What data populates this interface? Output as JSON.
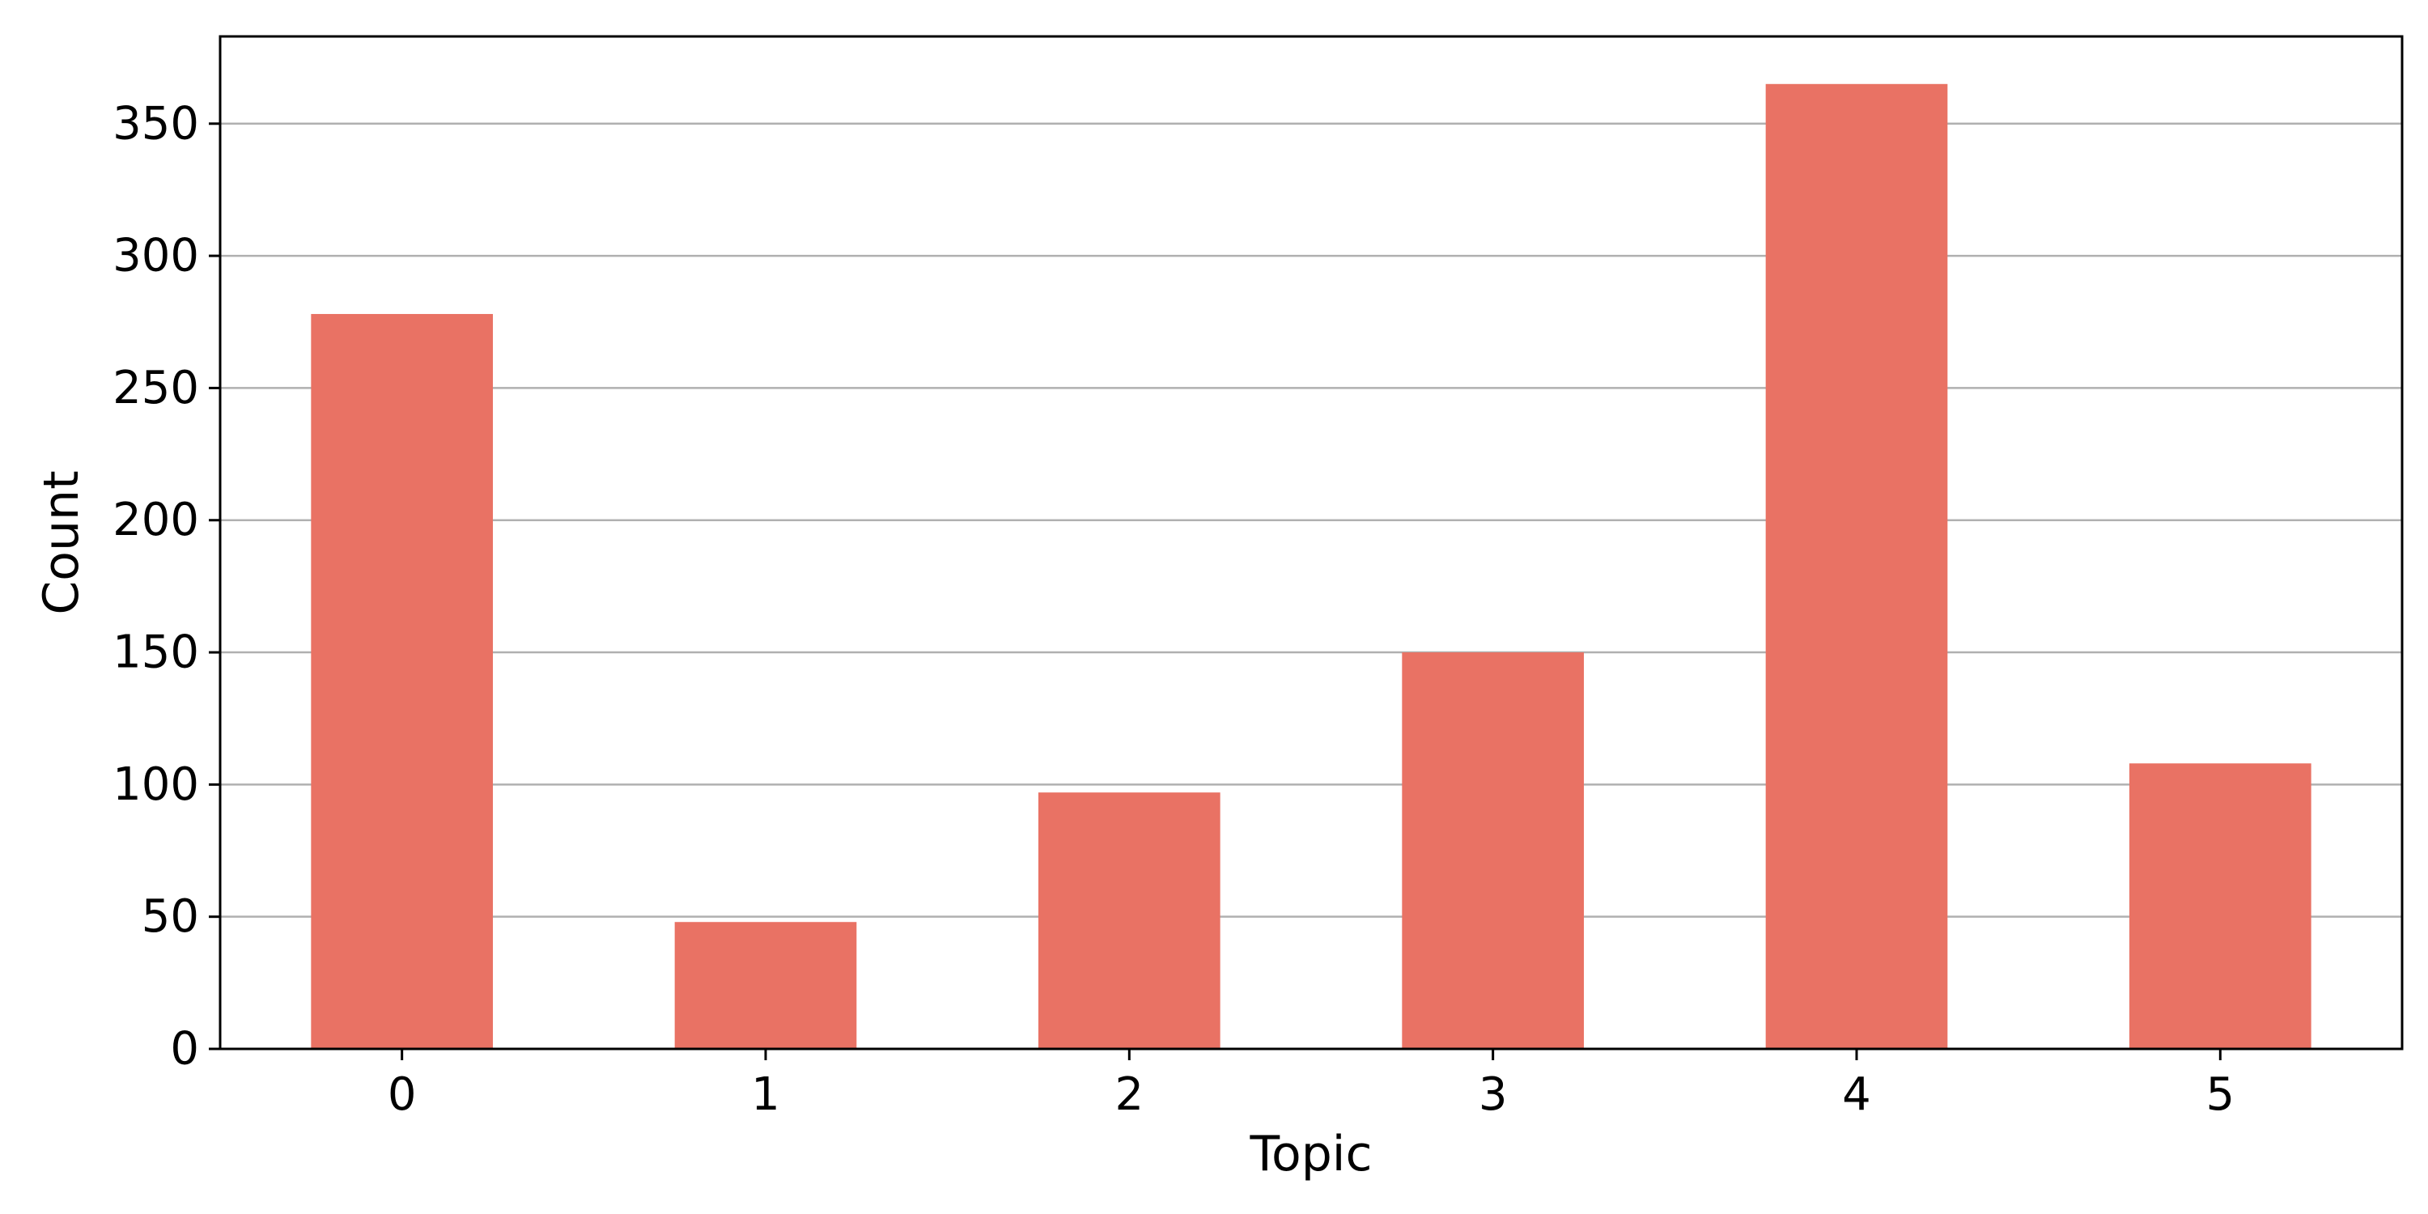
{
  "chart_data": {
    "type": "bar",
    "title": "",
    "xlabel": "Topic",
    "ylabel": "Count",
    "categories": [
      "0",
      "1",
      "2",
      "3",
      "4",
      "5"
    ],
    "values": [
      278,
      48,
      97,
      150,
      365,
      108
    ],
    "ylim": [
      0,
      383
    ],
    "yticks": [
      0,
      50,
      100,
      150,
      200,
      250,
      300,
      350
    ],
    "grid": "horizontal",
    "bar_color": "#E97264",
    "grid_color": "#b0b0b0",
    "axis_color": "#000000"
  }
}
